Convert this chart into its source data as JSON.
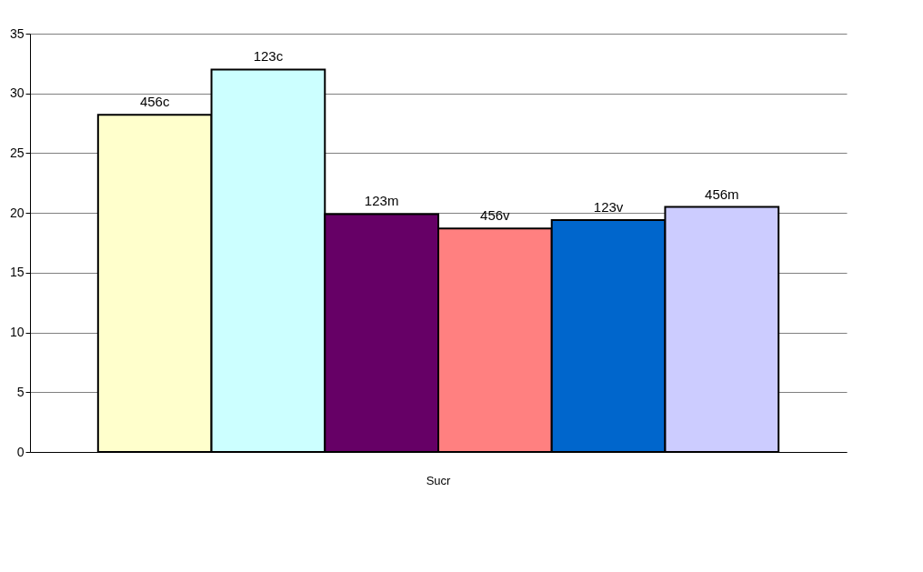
{
  "chart_data": {
    "type": "bar",
    "categories": [
      "Sucr"
    ],
    "series": [
      {
        "name": "456c",
        "color": "#ffffcc",
        "values": [
          28.2
        ]
      },
      {
        "name": "123c",
        "color": "#ccffff",
        "values": [
          32.0
        ]
      },
      {
        "name": "123m",
        "color": "#660066",
        "values": [
          19.9
        ]
      },
      {
        "name": "456v",
        "color": "#ff8080",
        "values": [
          18.7
        ]
      },
      {
        "name": "123v",
        "color": "#0066cc",
        "values": [
          19.4
        ]
      },
      {
        "name": "456m",
        "color": "#ccccff",
        "values": [
          20.5
        ]
      }
    ],
    "ylim": [
      0,
      35
    ],
    "yticks": [
      0,
      5,
      10,
      15,
      20,
      25,
      30,
      35
    ],
    "grid": "y",
    "legend": false
  }
}
